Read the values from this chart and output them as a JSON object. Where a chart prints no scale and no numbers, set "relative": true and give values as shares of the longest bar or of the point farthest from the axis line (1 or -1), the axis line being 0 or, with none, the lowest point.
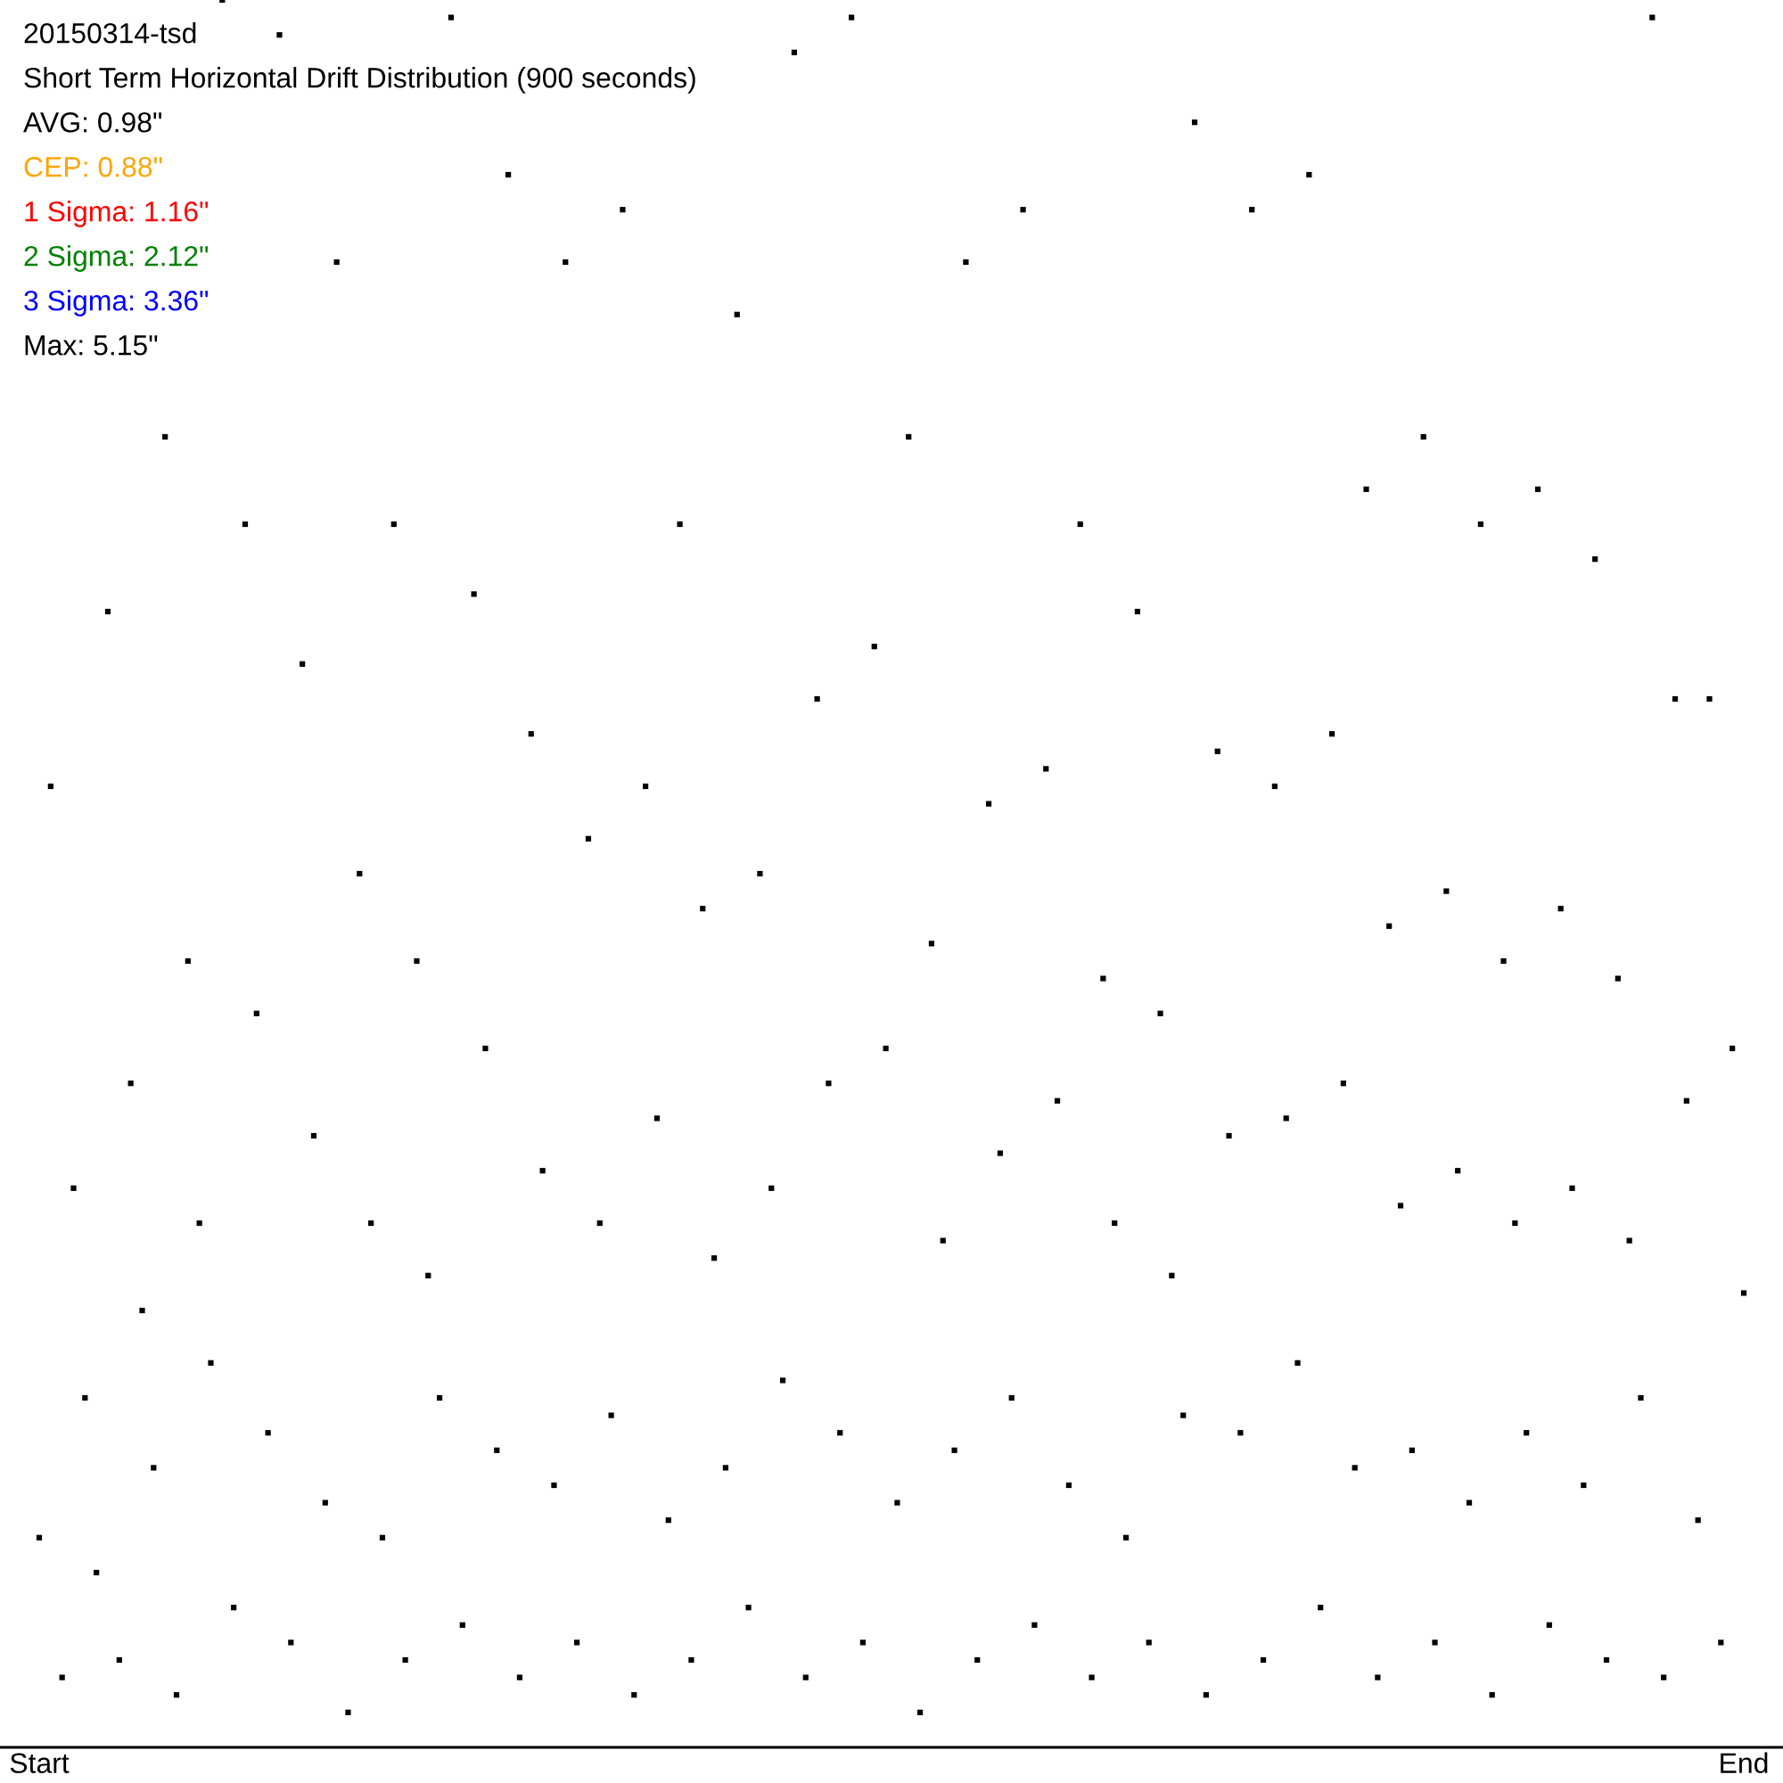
{
  "chart_data": {
    "type": "scatter",
    "title": "20150314-tsd",
    "subtitle": "Short Term Horizontal Drift Distribution (900 seconds)",
    "annotations": [
      "AVG: 0.98\"",
      "CEP: 0.88\"",
      "1 Sigma: 1.16\"",
      "2 Sigma: 2.12\"",
      "3 Sigma: 3.36\"",
      "Max: 5.15\""
    ],
    "relative": true,
    "marker": "square",
    "categories": [
      "Start",
      null,
      null,
      null,
      null,
      null,
      null,
      null,
      null,
      null,
      null,
      null,
      null,
      null,
      null,
      null,
      null,
      null,
      null,
      null,
      null,
      null,
      null,
      null,
      null,
      null,
      null,
      null,
      null,
      null,
      null,
      null,
      null,
      null,
      null,
      null,
      null,
      null,
      null,
      null,
      null,
      null,
      null,
      null,
      null,
      null,
      null,
      null,
      null,
      null,
      null,
      null,
      null,
      null,
      null,
      null,
      null,
      null,
      null,
      null,
      null,
      null,
      null,
      null,
      null,
      null,
      null,
      null,
      null,
      null,
      null,
      null,
      null,
      null,
      null,
      null,
      null,
      null,
      null,
      null,
      null,
      null,
      null,
      null,
      null,
      null,
      null,
      null,
      null,
      null,
      null,
      null,
      null,
      null,
      null,
      null,
      null,
      null,
      null,
      null,
      null,
      null,
      null,
      null,
      null,
      null,
      null,
      null,
      null,
      null,
      null,
      null,
      null,
      null,
      null,
      null,
      null,
      null,
      null,
      null,
      null,
      null,
      null,
      null,
      null,
      null,
      null,
      null,
      null,
      null,
      null,
      null,
      null,
      null,
      null,
      null,
      null,
      null,
      null,
      null,
      null,
      null,
      null,
      null,
      null,
      null,
      null,
      null,
      null,
      "End"
    ],
    "series": [
      {
        "color": "#000000",
        "values": [
          0.12,
          0.55,
          0.04,
          0.32,
          0.2,
          0.1,
          0.65,
          0.05,
          0.38,
          0.25,
          0.16,
          0.75,
          0.03,
          0.45,
          0.3,
          0.22,
          1.0,
          0.08,
          0.7,
          0.42,
          0.18,
          0.98,
          0.06,
          0.62,
          0.35,
          0.14,
          0.85,
          0.02,
          0.5,
          0.3,
          0.12,
          0.7,
          0.05,
          0.45,
          0.27,
          0.2,
          0.99,
          0.07,
          0.66,
          0.4,
          0.17,
          0.9,
          0.04,
          0.58,
          0.33,
          0.15,
          0.85,
          0.06,
          0.52,
          0.3,
          0.19,
          0.88,
          0.03,
          0.55,
          0.36,
          0.13,
          0.7,
          0.05,
          0.48,
          0.28,
          0.16,
          0.82,
          0.08,
          0.5,
          0.32,
          0.21,
          0.97,
          0.04,
          0.6,
          0.38,
          0.18,
          0.99,
          0.06,
          0.63,
          0.4,
          0.14,
          0.75,
          0.02,
          0.46,
          0.29,
          0.17,
          0.85,
          0.05,
          0.54,
          0.34,
          0.2,
          0.88,
          0.07,
          0.56,
          0.37,
          0.15,
          0.7,
          0.04,
          0.44,
          0.3,
          0.12,
          0.65,
          0.06,
          0.42,
          0.27,
          0.19,
          0.93,
          0.03,
          0.57,
          0.35,
          0.18,
          0.88,
          0.05,
          0.55,
          0.36,
          0.22,
          0.9,
          0.08,
          0.58,
          0.38,
          0.16,
          0.72,
          0.04,
          0.47,
          0.31,
          0.17,
          0.75,
          0.06,
          0.49,
          0.33,
          0.14,
          0.7,
          0.03,
          0.45,
          0.3,
          0.18,
          0.72,
          0.07,
          0.48,
          0.32,
          0.15,
          0.68,
          0.05,
          0.44,
          0.29,
          0.2,
          0.99,
          0.04,
          0.6,
          0.37,
          0.13,
          0.6,
          0.06,
          0.4,
          0.26
        ]
      }
    ]
  }
}
